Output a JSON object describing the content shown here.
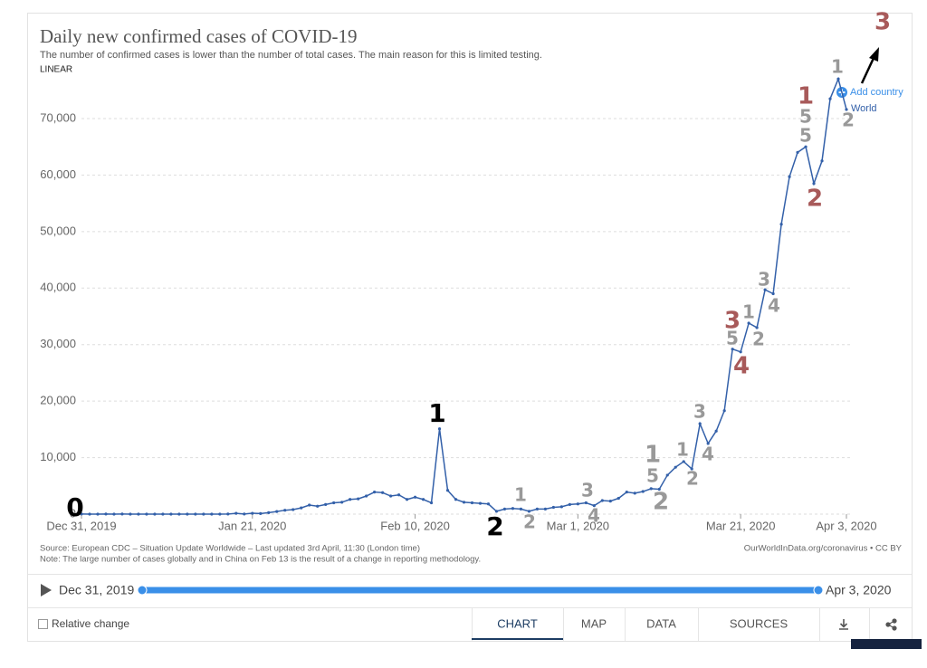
{
  "chart_data": {
    "type": "line",
    "title": "Daily new confirmed cases of COVID-19",
    "subtitle": "The number of confirmed cases is lower than the number of total cases. The main reason for this is limited testing.",
    "scale_label": "LINEAR",
    "source": "Source: European CDC – Situation Update Worldwide – Last updated 3rd April, 11:30 (London time)",
    "note": "Note: The large number of cases globally and in China on Feb 13 is the result of a change in reporting methodology.",
    "credit": "OurWorldInData.org/coronavirus • CC BY",
    "add_country": "Add country",
    "x": [
      "2019-12-31",
      "2020-01-01",
      "2020-01-02",
      "2020-01-03",
      "2020-01-04",
      "2020-01-05",
      "2020-01-06",
      "2020-01-07",
      "2020-01-08",
      "2020-01-09",
      "2020-01-10",
      "2020-01-11",
      "2020-01-12",
      "2020-01-13",
      "2020-01-14",
      "2020-01-15",
      "2020-01-16",
      "2020-01-17",
      "2020-01-18",
      "2020-01-19",
      "2020-01-20",
      "2020-01-21",
      "2020-01-22",
      "2020-01-23",
      "2020-01-24",
      "2020-01-25",
      "2020-01-26",
      "2020-01-27",
      "2020-01-28",
      "2020-01-29",
      "2020-01-30",
      "2020-01-31",
      "2020-02-01",
      "2020-02-02",
      "2020-02-03",
      "2020-02-04",
      "2020-02-05",
      "2020-02-06",
      "2020-02-07",
      "2020-02-08",
      "2020-02-09",
      "2020-02-10",
      "2020-02-11",
      "2020-02-12",
      "2020-02-13",
      "2020-02-14",
      "2020-02-15",
      "2020-02-16",
      "2020-02-17",
      "2020-02-18",
      "2020-02-19",
      "2020-02-20",
      "2020-02-21",
      "2020-02-22",
      "2020-02-23",
      "2020-02-24",
      "2020-02-25",
      "2020-02-26",
      "2020-02-27",
      "2020-02-28",
      "2020-02-29",
      "2020-03-01",
      "2020-03-02",
      "2020-03-03",
      "2020-03-04",
      "2020-03-05",
      "2020-03-06",
      "2020-03-07",
      "2020-03-08",
      "2020-03-09",
      "2020-03-10",
      "2020-03-11",
      "2020-03-12",
      "2020-03-13",
      "2020-03-14",
      "2020-03-15",
      "2020-03-16",
      "2020-03-17",
      "2020-03-18",
      "2020-03-19",
      "2020-03-20",
      "2020-03-21",
      "2020-03-22",
      "2020-03-23",
      "2020-03-24",
      "2020-03-25",
      "2020-03-26",
      "2020-03-27",
      "2020-03-28",
      "2020-03-29",
      "2020-03-30",
      "2020-03-31",
      "2020-04-01",
      "2020-04-02",
      "2020-04-03"
    ],
    "series": [
      {
        "name": "World",
        "color": "#3360a9",
        "values": [
          27,
          0,
          0,
          17,
          0,
          15,
          0,
          0,
          0,
          0,
          0,
          0,
          0,
          0,
          0,
          0,
          0,
          4,
          17,
          136,
          20,
          150,
          100,
          260,
          460,
          690,
          800,
          1100,
          1600,
          1400,
          1700,
          2000,
          2100,
          2600,
          2700,
          3200,
          3900,
          3800,
          3200,
          3400,
          2600,
          3000,
          2600,
          2000,
          15100,
          4200,
          2600,
          2100,
          2000,
          1900,
          1800,
          500,
          900,
          1000,
          900,
          500,
          900,
          900,
          1200,
          1300,
          1700,
          1800,
          2000,
          1500,
          2400,
          2300,
          2800,
          3900,
          3700,
          4000,
          4500,
          4400,
          6900,
          8300,
          9300,
          8000,
          16000,
          12500,
          14700,
          18300,
          29200,
          28700,
          33800,
          33000,
          39700,
          39000,
          51300,
          59700,
          64000,
          65000,
          58500,
          62500,
          73500,
          77000,
          71600
        ]
      }
    ],
    "xlim": [
      "2019-12-31",
      "2020-04-03"
    ],
    "xticks": [
      {
        "value": "2019-12-31",
        "label": "Dec 31, 2019"
      },
      {
        "value": "2020-01-21",
        "label": "Jan 21, 2020"
      },
      {
        "value": "2020-02-10",
        "label": "Feb 10, 2020"
      },
      {
        "value": "2020-03-01",
        "label": "Mar 1, 2020"
      },
      {
        "value": "2020-03-21",
        "label": "Mar 21, 2020"
      },
      {
        "value": "2020-04-03",
        "label": "Apr 3, 2020"
      }
    ],
    "ylim": [
      0,
      78000
    ],
    "yticks": [
      0,
      {
        "value": 10000,
        "label": "10,000"
      },
      {
        "value": 20000,
        "label": "20,000"
      },
      {
        "value": 30000,
        "label": "30,000"
      },
      {
        "value": 40000,
        "label": "40,000"
      },
      {
        "value": 50000,
        "label": "50,000"
      },
      {
        "value": 60000,
        "label": "60,000"
      },
      {
        "value": 70000,
        "label": "70,000"
      }
    ],
    "grid": true,
    "annotations": [
      {
        "text": "0",
        "color": "#000000"
      },
      {
        "text": "1",
        "color": "#000000"
      },
      {
        "text": "2",
        "color": "#000000"
      },
      {
        "text": "1",
        "color": "#999999"
      },
      {
        "text": "2",
        "color": "#999999"
      },
      {
        "text": "3",
        "color": "#999999"
      },
      {
        "text": "4",
        "color": "#999999"
      },
      {
        "text": "1",
        "color": "#999999"
      },
      {
        "text": "5",
        "color": "#999999"
      },
      {
        "text": "2",
        "color": "#999999"
      },
      {
        "text": "1",
        "color": "#999999"
      },
      {
        "text": "2",
        "color": "#999999"
      },
      {
        "text": "3",
        "color": "#999999"
      },
      {
        "text": "4",
        "color": "#999999"
      },
      {
        "text": "3",
        "color": "#a85a5a"
      },
      {
        "text": "5",
        "color": "#999999"
      },
      {
        "text": "4",
        "color": "#a85a5a"
      },
      {
        "text": "1",
        "color": "#999999"
      },
      {
        "text": "2",
        "color": "#999999"
      },
      {
        "text": "3",
        "color": "#999999"
      },
      {
        "text": "4",
        "color": "#999999"
      },
      {
        "text": "1",
        "color": "#a85a5a"
      },
      {
        "text": "5",
        "color": "#999999"
      },
      {
        "text": "5",
        "color": "#999999"
      },
      {
        "text": "2",
        "color": "#a85a5a"
      },
      {
        "text": "1",
        "color": "#999999"
      },
      {
        "text": "2",
        "color": "#999999"
      },
      {
        "text": "3",
        "color": "#a85a5a"
      }
    ]
  },
  "ui": {
    "timeline_start": "Dec 31, 2019",
    "timeline_end": "Apr 3, 2020",
    "relative_change": "Relative change",
    "tabs": [
      "CHART",
      "MAP",
      "DATA",
      "SOURCES"
    ]
  }
}
